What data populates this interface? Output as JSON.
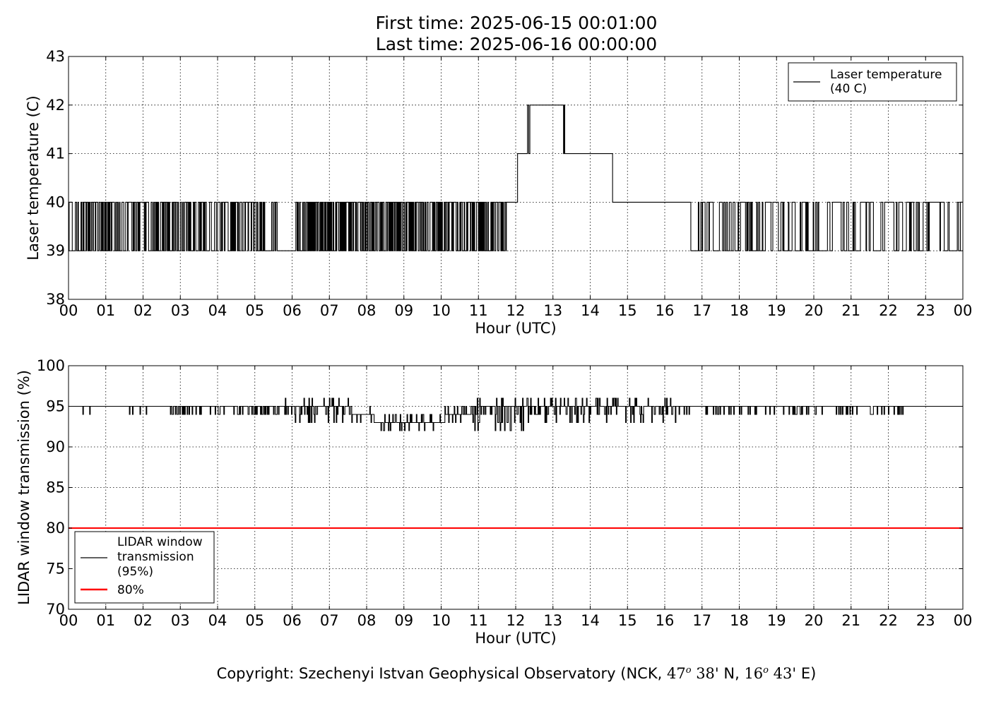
{
  "header": {
    "title_line1": "First time: 2025-06-15 00:01:00",
    "title_line2": "Last time: 2025-06-16 00:00:00"
  },
  "footer": {
    "prefix": "Copyright: Szechenyi Istvan Geophysical Observatory (NCK, ",
    "lat_deg": "47",
    "lat_min": " 38'",
    "lat_dir": " N, ",
    "lon_deg": "16",
    "lon_min": " 43'",
    "lon_dir": " E)",
    "degree_symbol": "o"
  },
  "chart_data": [
    {
      "type": "line",
      "xlabel": "Hour (UTC)",
      "ylabel": "Laser temperature (C)",
      "xlim": [
        0,
        24
      ],
      "ylim": [
        38,
        43
      ],
      "x_ticks": [
        "00",
        "01",
        "02",
        "03",
        "04",
        "05",
        "06",
        "07",
        "08",
        "09",
        "10",
        "11",
        "12",
        "13",
        "14",
        "15",
        "16",
        "17",
        "18",
        "19",
        "20",
        "21",
        "22",
        "23",
        "00"
      ],
      "y_ticks": [
        "38",
        "39",
        "40",
        "41",
        "42",
        "43"
      ],
      "grid": true,
      "legend_position": "top-right",
      "series": [
        {
          "name": "Laser temperature\n(40 C)",
          "color": "#000000",
          "step_segments": [
            {
              "from": 0.0,
              "to": 5.6,
              "mode": "toggle",
              "values": [
                39,
                40
              ],
              "density": 0.55
            },
            {
              "from": 5.6,
              "to": 6.1,
              "value": 39
            },
            {
              "from": 6.1,
              "to": 11.75,
              "mode": "toggle",
              "values": [
                39,
                40
              ],
              "density": 0.7
            },
            {
              "from": 11.75,
              "to": 12.05,
              "value": 40
            },
            {
              "from": 12.05,
              "to": 12.3,
              "value": 41
            },
            {
              "from": 12.3,
              "to": 12.38,
              "mode": "toggle",
              "values": [
                41,
                42
              ],
              "density": 0.6
            },
            {
              "from": 12.38,
              "to": 13.25,
              "value": 42
            },
            {
              "from": 13.25,
              "to": 13.35,
              "mode": "toggle",
              "values": [
                41,
                42
              ],
              "density": 0.6
            },
            {
              "from": 13.35,
              "to": 14.6,
              "value": 41
            },
            {
              "from": 14.6,
              "to": 16.7,
              "value": 40
            },
            {
              "from": 16.7,
              "to": 24.0,
              "mode": "toggle",
              "values": [
                39,
                40
              ],
              "density": 0.25
            }
          ]
        }
      ]
    },
    {
      "type": "line",
      "xlabel": "Hour (UTC)",
      "ylabel": "LIDAR window transmission (%)",
      "xlim": [
        0,
        24
      ],
      "ylim": [
        70,
        100
      ],
      "x_ticks": [
        "00",
        "01",
        "02",
        "03",
        "04",
        "05",
        "06",
        "07",
        "08",
        "09",
        "10",
        "11",
        "12",
        "13",
        "14",
        "15",
        "16",
        "17",
        "18",
        "19",
        "20",
        "21",
        "22",
        "23",
        "00"
      ],
      "y_ticks": [
        "70",
        "75",
        "80",
        "85",
        "90",
        "95",
        "100"
      ],
      "grid": true,
      "legend_position": "bottom-left",
      "series": [
        {
          "name": "LIDAR window\ntransmission\n(95%)",
          "color": "#000000",
          "noisy_segments": [
            {
              "from": 0.0,
              "to": 2.7,
              "base": 95,
              "low": 94,
              "high": 95,
              "density": 0.08
            },
            {
              "from": 2.7,
              "to": 5.8,
              "base": 95,
              "low": 94,
              "high": 95,
              "density": 0.45
            },
            {
              "from": 5.8,
              "to": 7.6,
              "base": 94.5,
              "low": 93,
              "high": 96,
              "density": 0.5
            },
            {
              "from": 7.6,
              "to": 8.2,
              "base": 94,
              "low": 93,
              "high": 95,
              "density": 0.5
            },
            {
              "from": 8.2,
              "to": 10.1,
              "base": 93,
              "low": 92,
              "high": 94,
              "density": 0.6
            },
            {
              "from": 10.1,
              "to": 10.8,
              "base": 94,
              "low": 93,
              "high": 95,
              "density": 0.5
            },
            {
              "from": 10.8,
              "to": 12.4,
              "base": 94.5,
              "low": 92,
              "high": 96,
              "density": 0.7
            },
            {
              "from": 12.4,
              "to": 16.3,
              "base": 94.5,
              "low": 93,
              "high": 96,
              "density": 0.55
            },
            {
              "from": 16.3,
              "to": 22.4,
              "base": 95,
              "low": 94,
              "high": 95,
              "density": 0.35
            },
            {
              "from": 22.4,
              "to": 24.0,
              "base": 95,
              "low": 95,
              "high": 95,
              "density": 0.0
            }
          ]
        },
        {
          "name": "80%",
          "color": "#ff0000",
          "constant": 80
        }
      ]
    }
  ]
}
